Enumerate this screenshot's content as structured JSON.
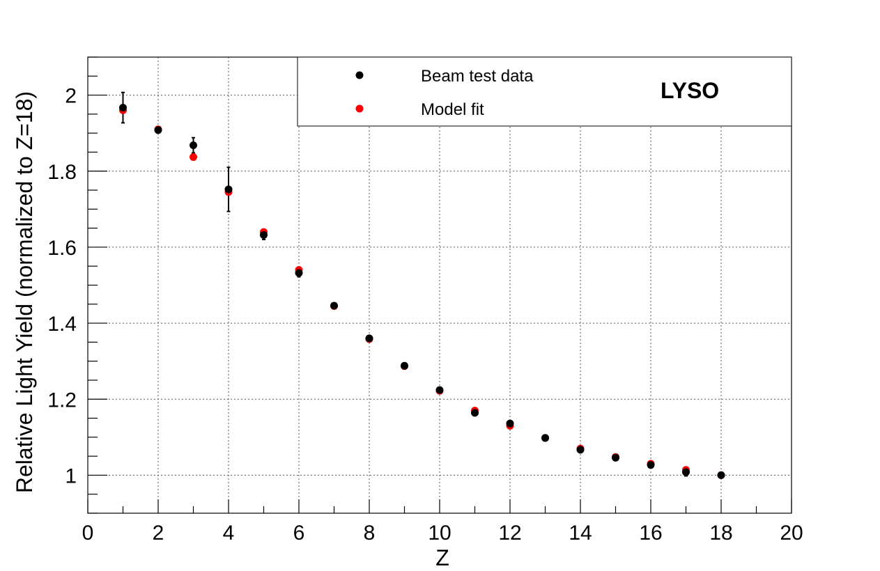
{
  "chart_data": {
    "type": "scatter",
    "title": "",
    "xlabel": "Z",
    "ylabel": "Relative Light Yield (normalized to Z=18)",
    "xlim": [
      0,
      20
    ],
    "ylim": [
      0.9,
      2.1
    ],
    "x_ticks": [
      0,
      2,
      4,
      6,
      8,
      10,
      12,
      14,
      16,
      18,
      20
    ],
    "y_ticks": [
      1,
      1.2,
      1.4,
      1.6,
      1.8,
      2
    ],
    "x_tick_labels": [
      "0",
      "2",
      "4",
      "6",
      "8",
      "10",
      "12",
      "14",
      "16",
      "18",
      "20"
    ],
    "y_tick_labels": [
      "1",
      "1.2",
      "1.4",
      "1.6",
      "1.8",
      "2"
    ],
    "grid": true,
    "legend_position": "top-right",
    "annotation": "LYSO",
    "series": [
      {
        "name": "Model fit",
        "color": "#ff0000",
        "x": [
          1,
          2,
          3,
          4,
          5,
          6,
          7,
          8,
          9,
          10,
          11,
          12,
          13,
          14,
          15,
          16,
          17,
          18
        ],
        "y": [
          1.96,
          1.91,
          1.837,
          1.745,
          1.64,
          1.54,
          1.445,
          1.358,
          1.287,
          1.222,
          1.17,
          1.13,
          1.098,
          1.07,
          1.048,
          1.03,
          1.014,
          1.0
        ]
      },
      {
        "name": "Beam test data",
        "color": "#000000",
        "x": [
          1,
          2,
          3,
          4,
          5,
          6,
          7,
          8,
          9,
          10,
          11,
          12,
          13,
          14,
          15,
          16,
          17,
          18
        ],
        "y": [
          1.967,
          1.908,
          1.868,
          1.752,
          1.632,
          1.532,
          1.446,
          1.36,
          1.288,
          1.224,
          1.164,
          1.136,
          1.098,
          1.067,
          1.046,
          1.027,
          1.008,
          1.0
        ],
        "yerr": [
          0.04,
          0.004,
          0.02,
          0.058,
          0.012,
          0.01,
          0.004,
          0.004,
          0.004,
          0.004,
          0.004,
          0.004,
          0.004,
          0.004,
          0.004,
          0.004,
          0.01,
          0.0
        ]
      }
    ]
  }
}
